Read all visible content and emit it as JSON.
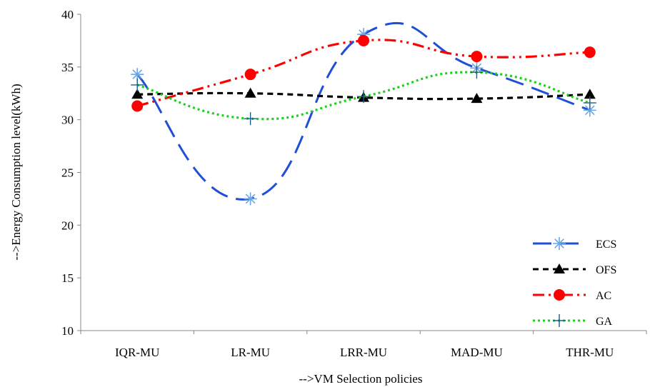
{
  "chart_data": {
    "type": "line",
    "title": "",
    "xlabel": "-->VM Selection policies",
    "ylabel": "-->Energy Consumption level(kWh)",
    "categories": [
      "IQR-MU",
      "LR-MU",
      "LRR-MU",
      "MAD-MU",
      "THR-MU"
    ],
    "ylim": [
      10,
      40
    ],
    "yticks": [
      10,
      15,
      20,
      25,
      30,
      35,
      40
    ],
    "grid": false,
    "legend_position": "right",
    "series": [
      {
        "name": "ECS",
        "values": [
          34.3,
          22.5,
          38.1,
          34.9,
          30.9
        ],
        "color": "#1f4fd6",
        "dash": "dashed",
        "marker": "asterisk",
        "smooth": true
      },
      {
        "name": "OFS",
        "values": [
          32.4,
          32.5,
          32.1,
          32.0,
          32.4
        ],
        "color": "#000000",
        "dash": "short-dash",
        "marker": "triangle",
        "smooth": true
      },
      {
        "name": "AC",
        "values": [
          31.3,
          34.3,
          37.5,
          36.0,
          36.4
        ],
        "color": "#ff0000",
        "dash": "dash-dot-dot",
        "marker": "circle",
        "smooth": true
      },
      {
        "name": "GA",
        "values": [
          33.3,
          30.1,
          32.2,
          34.5,
          31.6
        ],
        "color": "#19d219",
        "dash": "dotted",
        "marker": "plus",
        "smooth": true
      }
    ]
  }
}
